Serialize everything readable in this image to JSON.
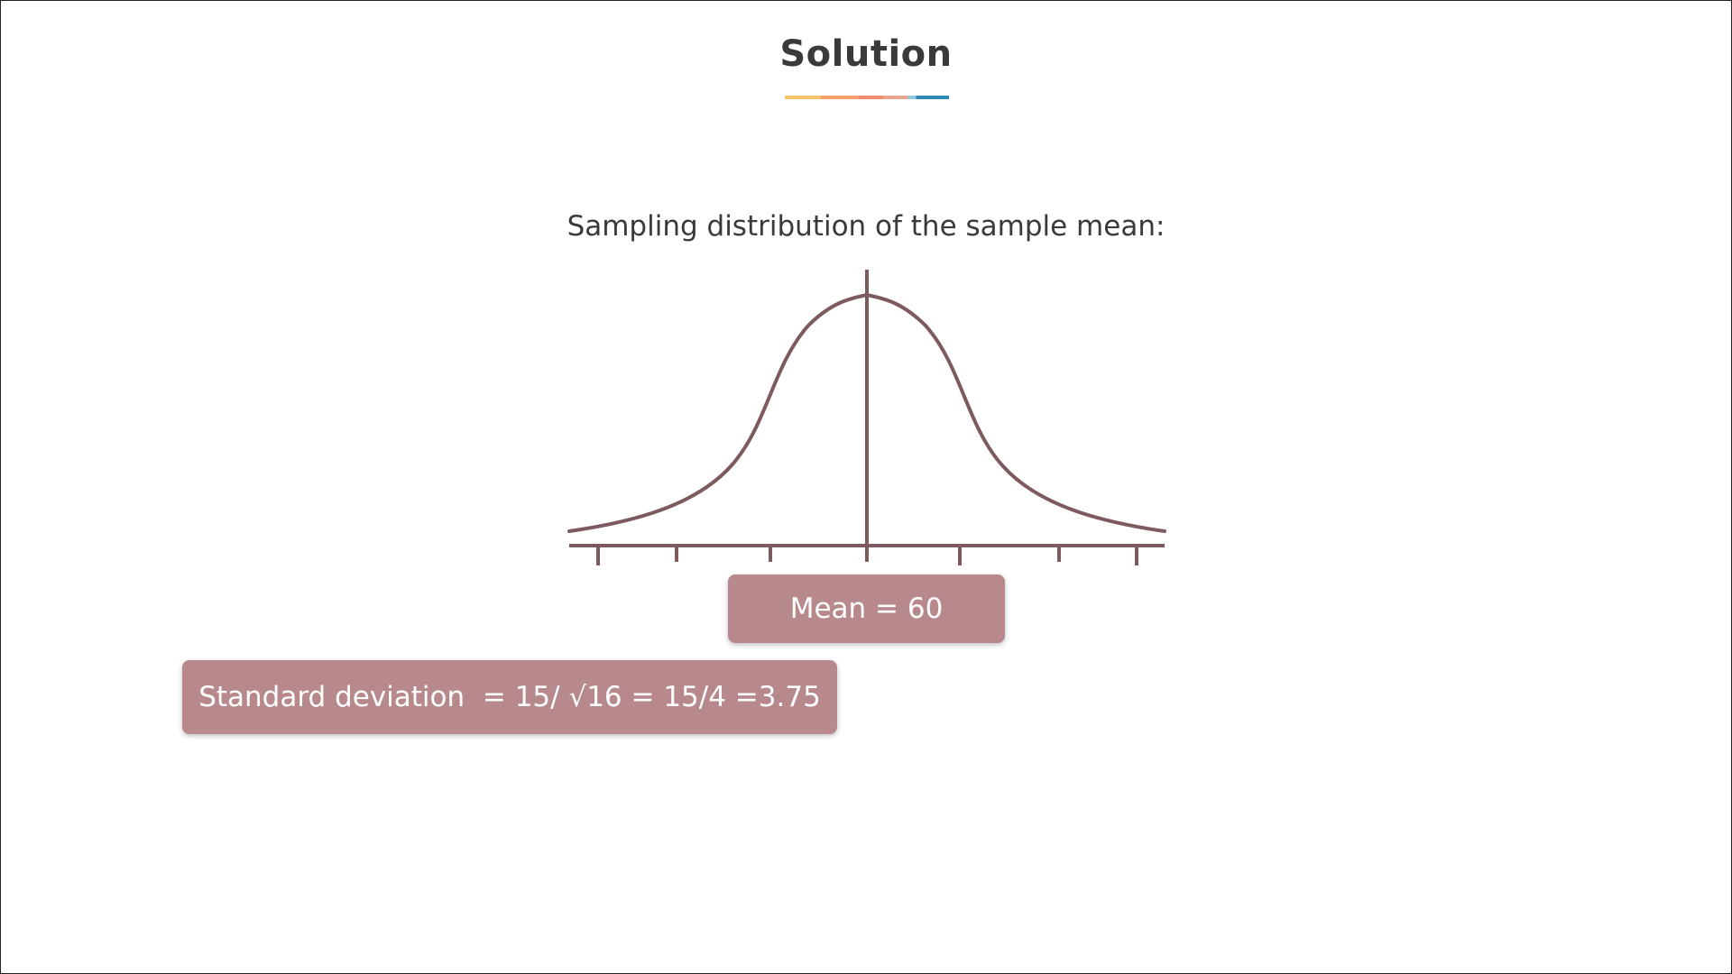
{
  "slide": {
    "title": "Solution",
    "subtitle": "Sampling distribution of the sample mean:"
  },
  "diagram": {
    "curve_color": "#7d5a5e",
    "tick_count": 7
  },
  "labels": {
    "mean": "Mean = 60",
    "standard_deviation": "Standard deviation  = 15/ √16 = 15/4 =3.75",
    "box_color": "#b8898c"
  }
}
